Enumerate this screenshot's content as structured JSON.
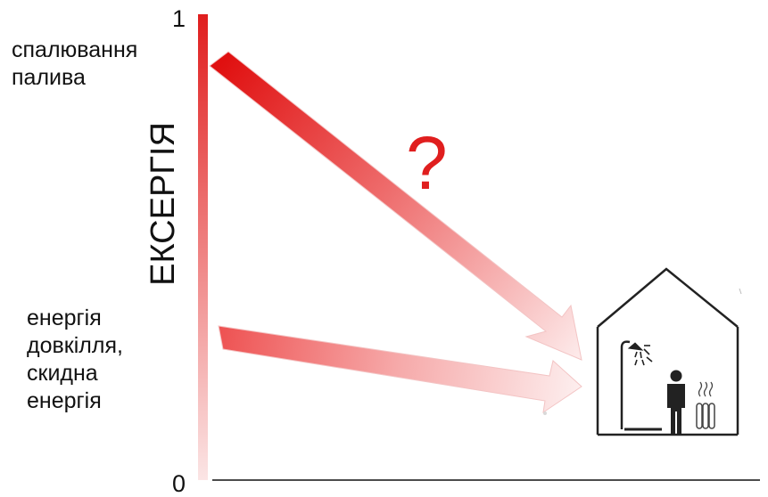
{
  "axis": {
    "title": "ЕКСЕРГІЯ",
    "tick_top": "1",
    "tick_bottom": "0"
  },
  "sources": {
    "top_label": "спалювання\nпалива",
    "bottom_label": "енергія\nдовкілля,\nскидна\nенергія"
  },
  "annotation": {
    "question": "?"
  },
  "colors": {
    "accent": "#e01e1e",
    "text": "#111111",
    "outline": "#222222"
  },
  "icons": {
    "house": "house-icon",
    "shower": "shower-icon",
    "person": "person-icon",
    "radiator": "radiator-icon"
  }
}
